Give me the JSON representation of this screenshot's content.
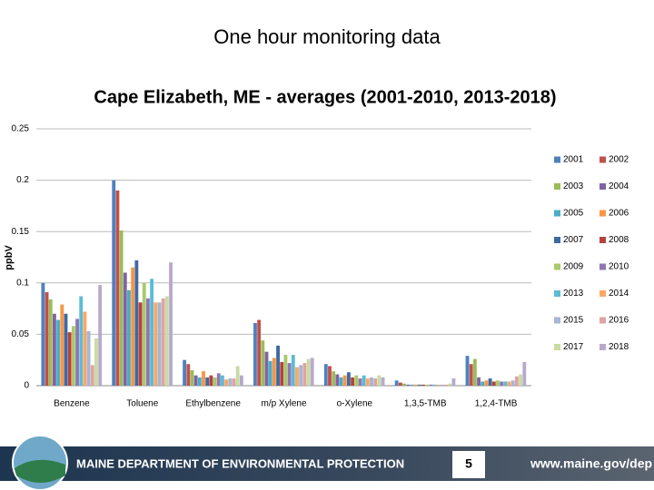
{
  "slide": {
    "title": "One hour monitoring data",
    "footer": "MAINE DEPARTMENT OF ENVIRONMENTAL PROTECTION",
    "page": "5",
    "url": "www.maine.gov/dep"
  },
  "chart_data": {
    "type": "bar",
    "title": "Cape Elizabeth, ME - averages (2001-2010, 2013-2018)",
    "y_label": "ppbV",
    "categories": [
      "Benzene",
      "Toluene",
      "Ethylbenzene",
      "m/p Xylene",
      "o-Xylene",
      "1,3,5-TMB",
      "1,2,4-TMB"
    ],
    "ylim": [
      0,
      0.25
    ],
    "yticks": [
      0,
      0.05,
      0.1,
      0.15,
      0.2,
      0.25
    ],
    "grid": true,
    "series": [
      {
        "name": "2001",
        "color": "#4f81bd",
        "values": [
          0.1,
          0.2,
          0.025,
          0.061,
          0.021,
          0.005,
          0.029
        ]
      },
      {
        "name": "2002",
        "color": "#c0504d",
        "values": [
          0.091,
          0.19,
          0.021,
          0.064,
          0.019,
          0.003,
          0.021
        ]
      },
      {
        "name": "2003",
        "color": "#9bbb59",
        "values": [
          0.084,
          0.151,
          0.015,
          0.044,
          0.014,
          0.002,
          0.026
        ]
      },
      {
        "name": "2004",
        "color": "#8064a2",
        "values": [
          0.07,
          0.11,
          0.01,
          0.033,
          0.011,
          0.001,
          0.008
        ]
      },
      {
        "name": "2005",
        "color": "#4bacc6",
        "values": [
          0.064,
          0.093,
          0.008,
          0.024,
          0.008,
          0.001,
          0.004
        ]
      },
      {
        "name": "2006",
        "color": "#f79646",
        "values": [
          0.079,
          0.115,
          0.014,
          0.027,
          0.01,
          0.001,
          0.005
        ]
      },
      {
        "name": "2007",
        "color": "#3f6aa0",
        "values": [
          0.07,
          0.122,
          0.008,
          0.039,
          0.013,
          0.001,
          0.007
        ]
      },
      {
        "name": "2008",
        "color": "#b5423f",
        "values": [
          0.052,
          0.081,
          0.01,
          0.023,
          0.008,
          0.001,
          0.004
        ]
      },
      {
        "name": "2009",
        "color": "#a9c96a",
        "values": [
          0.058,
          0.1,
          0.008,
          0.03,
          0.01,
          0.001,
          0.005
        ]
      },
      {
        "name": "2010",
        "color": "#8f77b0",
        "values": [
          0.065,
          0.085,
          0.012,
          0.022,
          0.007,
          0.001,
          0.004
        ]
      },
      {
        "name": "2013",
        "color": "#5bbcd6",
        "values": [
          0.087,
          0.104,
          0.01,
          0.03,
          0.01,
          0.001,
          0.004
        ]
      },
      {
        "name": "2014",
        "color": "#f9a865",
        "values": [
          0.072,
          0.081,
          0.006,
          0.018,
          0.007,
          0.001,
          0.004
        ]
      },
      {
        "name": "2015",
        "color": "#a5b6d6",
        "values": [
          0.053,
          0.081,
          0.007,
          0.02,
          0.008,
          0.001,
          0.005
        ]
      },
      {
        "name": "2016",
        "color": "#dea4a2",
        "values": [
          0.02,
          0.085,
          0.007,
          0.022,
          0.007,
          0.001,
          0.009
        ]
      },
      {
        "name": "2017",
        "color": "#c8dca3",
        "values": [
          0.046,
          0.087,
          0.019,
          0.026,
          0.01,
          0.002,
          0.011
        ]
      },
      {
        "name": "2018",
        "color": "#b8a9cc",
        "values": [
          0.098,
          0.12,
          0.01,
          0.027,
          0.008,
          0.007,
          0.023
        ]
      }
    ]
  }
}
